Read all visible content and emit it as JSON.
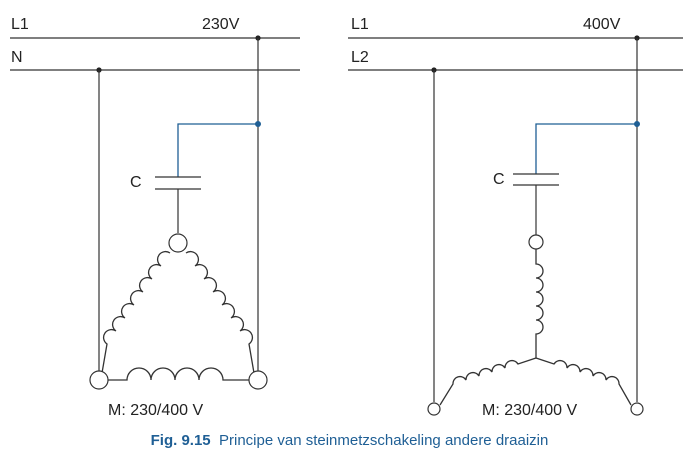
{
  "left_circuit": {
    "line1": "L1",
    "line2": "N",
    "voltage": "230V",
    "capacitor": "C",
    "motor": "M: 230/400 V"
  },
  "right_circuit": {
    "line1": "L1",
    "line2": "L2",
    "voltage": "400V",
    "capacitor": "C",
    "motor": "M: 230/400 V"
  },
  "caption": {
    "number": "Fig. 9.15",
    "text": "Principe van steinmetzschakeling andere draaizin"
  },
  "colors": {
    "accent": "#1f5f95",
    "lines": "#333333"
  }
}
